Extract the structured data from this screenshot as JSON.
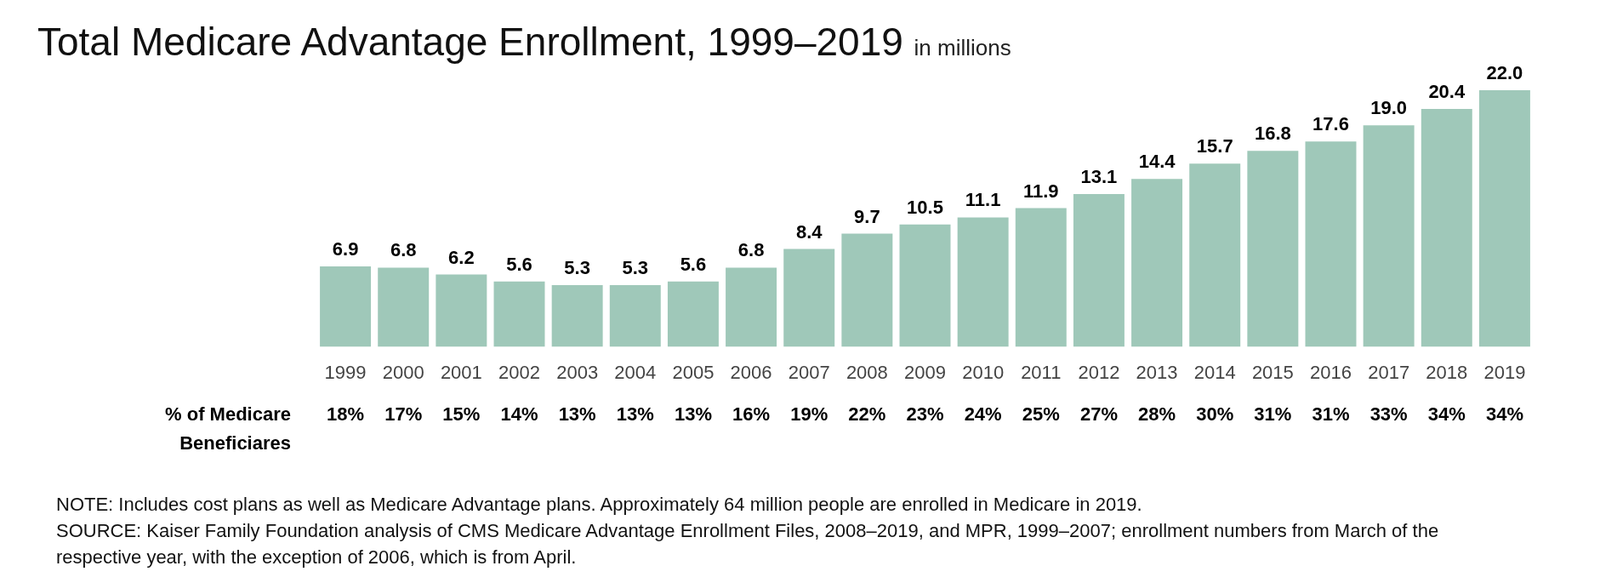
{
  "chart_data": {
    "type": "bar",
    "title": "Total Medicare Advantage Enrollment, 1999–2019",
    "subtitle": "in millions",
    "categories": [
      "1999",
      "2000",
      "2001",
      "2002",
      "2003",
      "2004",
      "2005",
      "2006",
      "2007",
      "2008",
      "2009",
      "2010",
      "2011",
      "2012",
      "2013",
      "2014",
      "2015",
      "2016",
      "2017",
      "2018",
      "2019"
    ],
    "values": [
      6.9,
      6.8,
      6.2,
      5.6,
      5.3,
      5.3,
      5.6,
      6.8,
      8.4,
      9.7,
      10.5,
      11.1,
      11.9,
      13.1,
      14.4,
      15.7,
      16.8,
      17.6,
      19.0,
      20.4,
      22.0
    ],
    "value_labels": [
      "6.9",
      "6.8",
      "6.2",
      "5.6",
      "5.3",
      "5.3",
      "5.6",
      "6.8",
      "8.4",
      "9.7",
      "10.5",
      "11.1",
      "11.9",
      "13.1",
      "14.4",
      "15.7",
      "16.8",
      "17.6",
      "19.0",
      "20.4",
      "22.0"
    ],
    "color": "#9fc8b9",
    "ylim": [
      0,
      22
    ],
    "yticks": [
      0,
      22
    ],
    "grid": false,
    "data_labels": true,
    "tick_labels": "x",
    "share_label": [
      "% of Medicare",
      "Beneficiares"
    ],
    "share_values": [
      18,
      17,
      15,
      14,
      13,
      13,
      13,
      16,
      19,
      22,
      23,
      24,
      25,
      27,
      28,
      30,
      31,
      31,
      33,
      34,
      34
    ],
    "share_value_labels": [
      "18%",
      "17%",
      "15%",
      "14%",
      "13%",
      "13%",
      "13%",
      "16%",
      "19%",
      "22%",
      "23%",
      "24%",
      "25%",
      "27%",
      "28%",
      "30%",
      "31%",
      "31%",
      "33%",
      "34%",
      "34%"
    ],
    "notes": [
      "NOTE: Includes cost plans as well as Medicare Advantage plans. Approximately 64 million people are enrolled in Medicare in 2019.",
      "SOURCE: Kaiser Family Foundation analysis of CMS Medicare Advantage Enrollment Files, 2008–2019, and MPR, 1999–2007; enrollment numbers from March of the respective year, with the exception of 2006, which is from April."
    ]
  }
}
